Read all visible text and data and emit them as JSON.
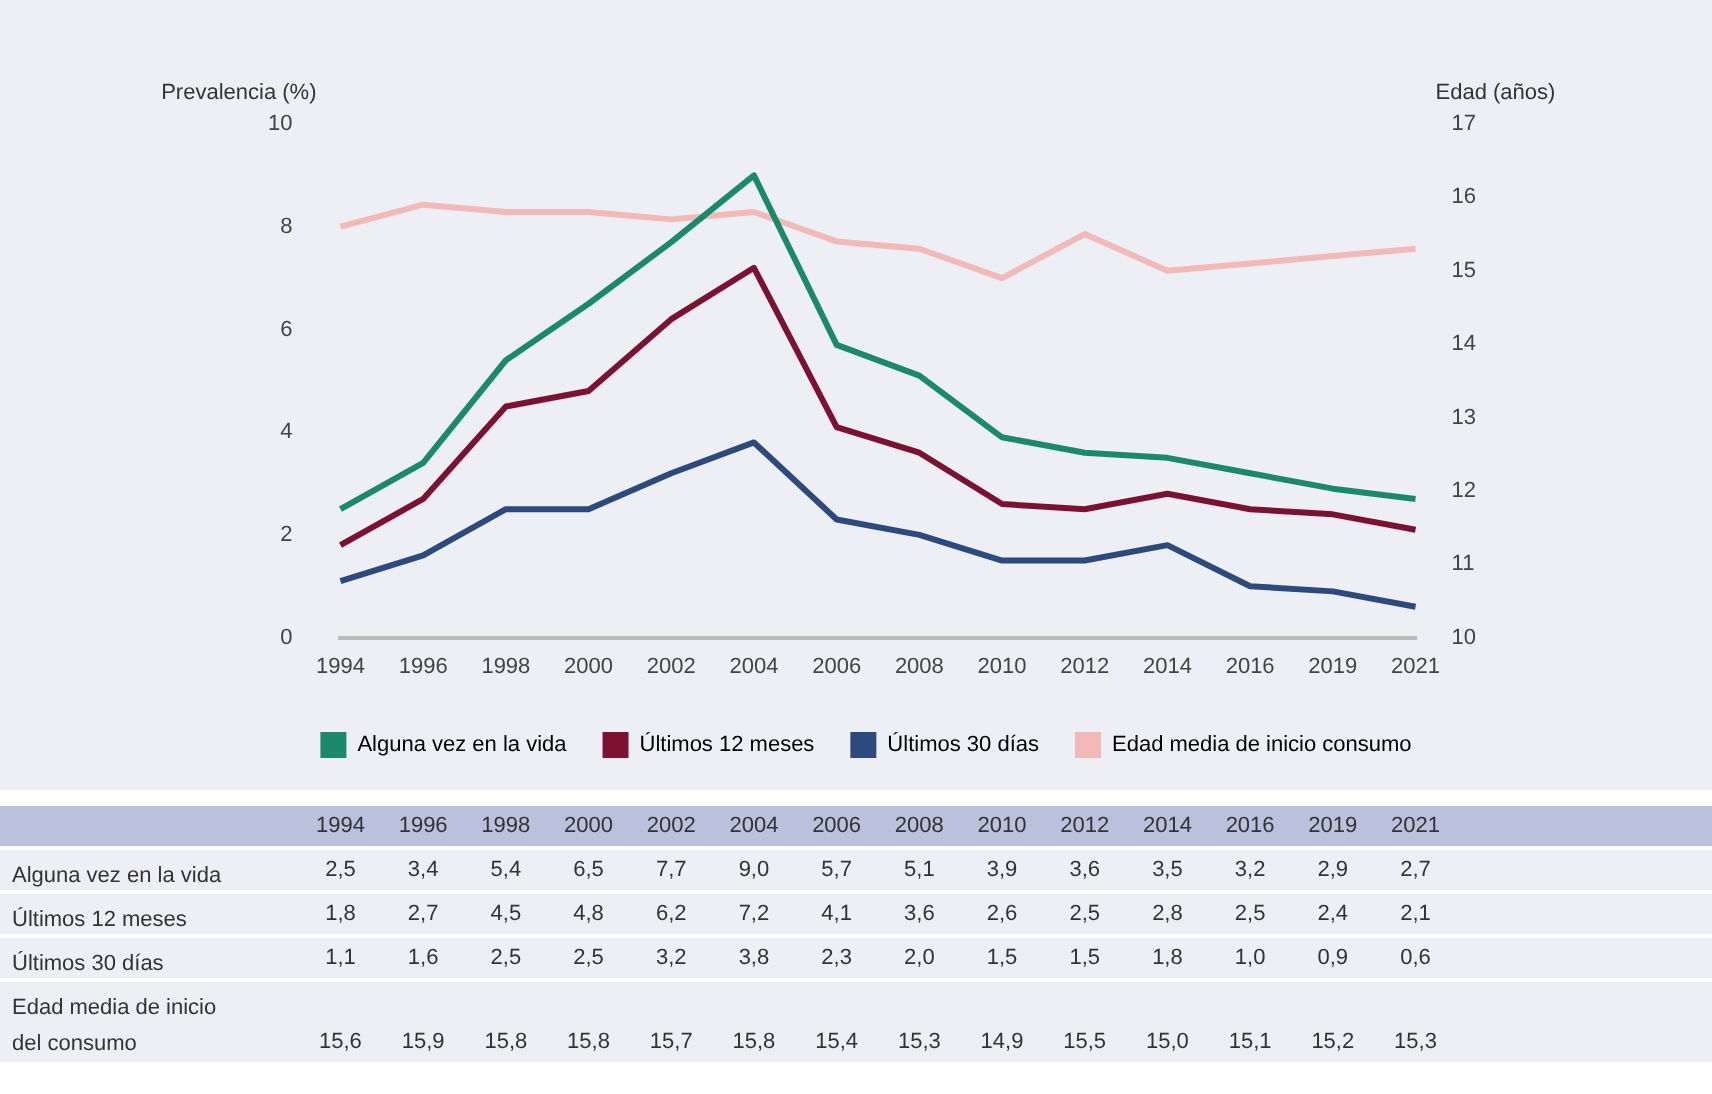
{
  "chart_data": {
    "type": "line",
    "ylabel": "Prevalencia (%)",
    "y2label": "Edad (años)",
    "categories": [
      "1994",
      "1996",
      "1998",
      "2000",
      "2002",
      "2004",
      "2006",
      "2008",
      "2010",
      "2012",
      "2014",
      "2016",
      "2019",
      "2021"
    ],
    "series": [
      {
        "name": "Alguna vez en la vida",
        "color": "#1b8a6b",
        "values": [
          2.5,
          3.4,
          5.4,
          6.5,
          7.7,
          9.0,
          5.7,
          5.1,
          3.9,
          3.6,
          3.5,
          3.2,
          2.9,
          2.7
        ],
        "value_labels": [
          "2,5",
          "3,4",
          "5,4",
          "6,5",
          "7,7",
          "9,0",
          "5,7",
          "5,1",
          "3,9",
          "3,6",
          "3,5",
          "3,2",
          "2,9",
          "2,7"
        ]
      },
      {
        "name": "Últimos 12 meses",
        "color": "#7b1232",
        "values": [
          1.8,
          2.7,
          4.5,
          4.8,
          6.2,
          7.2,
          4.1,
          3.6,
          2.6,
          2.5,
          2.8,
          2.5,
          2.4,
          2.1
        ],
        "value_labels": [
          "1,8",
          "2,7",
          "4,5",
          "4,8",
          "6,2",
          "7,2",
          "4,1",
          "3,6",
          "2,6",
          "2,5",
          "2,8",
          "2,5",
          "2,4",
          "2,1"
        ]
      },
      {
        "name": "Últimos 30 días",
        "color": "#2c4a7c",
        "values": [
          1.1,
          1.6,
          2.5,
          2.5,
          3.2,
          3.8,
          2.3,
          2.0,
          1.5,
          1.5,
          1.8,
          1.0,
          0.9,
          0.6
        ],
        "value_labels": [
          "1,1",
          "1,6",
          "2,5",
          "2,5",
          "3,2",
          "3,8",
          "2,3",
          "2,0",
          "1,5",
          "1,5",
          "1,8",
          "1,0",
          "0,9",
          "0,6"
        ]
      },
      {
        "name": "Edad media de inicio consumo",
        "color": "#f2b9b9",
        "axis": "y2",
        "values": [
          15.6,
          15.9,
          15.8,
          15.8,
          15.7,
          15.8,
          15.4,
          15.3,
          14.9,
          15.5,
          15.0,
          15.1,
          15.2,
          15.3
        ],
        "value_labels": [
          "15,6",
          "15,9",
          "15,8",
          "15,8",
          "15,7",
          "15,8",
          "15,4",
          "15,3",
          "14,9",
          "15,5",
          "15,0",
          "15,1",
          "15,2",
          "15,3"
        ]
      }
    ],
    "ylim": [
      0,
      10
    ],
    "yticks": [
      0,
      2,
      4,
      6,
      8,
      10
    ],
    "y2lim": [
      10,
      17
    ],
    "y2ticks": [
      10,
      11,
      12,
      13,
      14,
      15,
      16,
      17
    ],
    "grid": false,
    "legend": "bottom",
    "marker": "none",
    "line_style": "solid",
    "annotations": [
      "Alguna vez en la vida",
      "Últimos 12 meses",
      "Últimos 30 días",
      "Edad media de inicio del consumo"
    ]
  }
}
